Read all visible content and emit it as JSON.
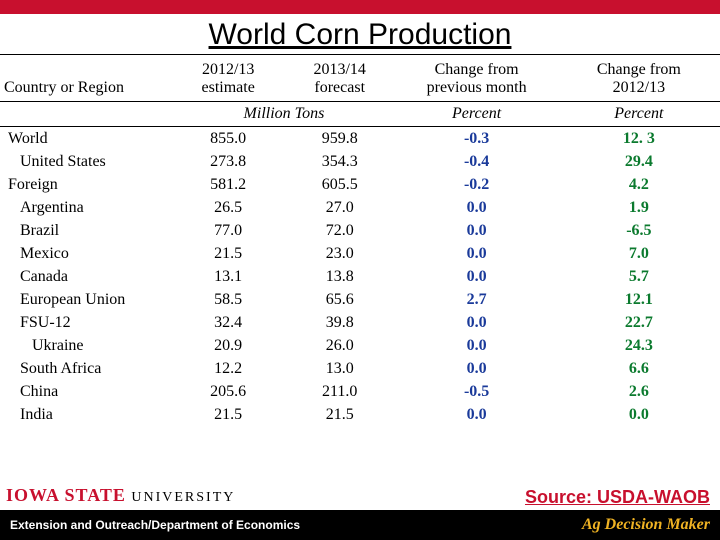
{
  "colors": {
    "brand_red": "#c8102e",
    "blue": "#1a3a9a",
    "green": "#0b7a2e",
    "gold": "#f0b323",
    "black": "#000000",
    "white": "#ffffff"
  },
  "title": "World Corn Production",
  "table": {
    "columns": [
      {
        "key": "region",
        "label": "Country or Region"
      },
      {
        "key": "est",
        "label_line1": "2012/13",
        "label_line2": "estimate"
      },
      {
        "key": "fore",
        "label_line1": "2013/14",
        "label_line2": "forecast"
      },
      {
        "key": "chg1",
        "label_line1": "Change from",
        "label_line2": "previous month"
      },
      {
        "key": "chg2",
        "label_line1": "Change from",
        "label_line2": "2012/13"
      }
    ],
    "units": {
      "mt": "Million Tons",
      "p1": "Percent",
      "p2": "Percent"
    },
    "rows": [
      {
        "region": "World",
        "indent": 0,
        "est": "855.0",
        "fore": "959.8",
        "chg1": "-0.3",
        "chg2": "12. 3"
      },
      {
        "region": "United States",
        "indent": 1,
        "est": "273.8",
        "fore": "354.3",
        "chg1": "-0.4",
        "chg2": "29.4"
      },
      {
        "region": "Foreign",
        "indent": 0,
        "est": "581.2",
        "fore": "605.5",
        "chg1": "-0.2",
        "chg2": "4.2"
      },
      {
        "region": "Argentina",
        "indent": 1,
        "est": "26.5",
        "fore": "27.0",
        "chg1": "0.0",
        "chg2": "1.9"
      },
      {
        "region": "Brazil",
        "indent": 1,
        "est": "77.0",
        "fore": "72.0",
        "chg1": "0.0",
        "chg2": "-6.5"
      },
      {
        "region": "Mexico",
        "indent": 1,
        "est": "21.5",
        "fore": "23.0",
        "chg1": "0.0",
        "chg2": "7.0"
      },
      {
        "region": "Canada",
        "indent": 1,
        "est": "13.1",
        "fore": "13.8",
        "chg1": "0.0",
        "chg2": "5.7"
      },
      {
        "region": "European Union",
        "indent": 1,
        "est": "58.5",
        "fore": "65.6",
        "chg1": "2.7",
        "chg2": "12.1"
      },
      {
        "region": "FSU-12",
        "indent": 1,
        "est": "32.4",
        "fore": "39.8",
        "chg1": "0.0",
        "chg2": "22.7"
      },
      {
        "region": "Ukraine",
        "indent": 2,
        "est": "20.9",
        "fore": "26.0",
        "chg1": "0.0",
        "chg2": "24.3"
      },
      {
        "region": "South Africa",
        "indent": 1,
        "est": "12.2",
        "fore": "13.0",
        "chg1": "0.0",
        "chg2": "6.6"
      },
      {
        "region": "China",
        "indent": 1,
        "est": "205.6",
        "fore": "211.0",
        "chg1": "-0.5",
        "chg2": "2.6"
      },
      {
        "region": "India",
        "indent": 1,
        "est": "21.5",
        "fore": "21.5",
        "chg1": "0.0",
        "chg2": "0.0"
      }
    ]
  },
  "source": "Source: USDA-WAOB",
  "logo": {
    "line1_a": "IOWA ",
    "line1_b": "STATE ",
    "line1_c": "UNIVERSITY"
  },
  "footer": {
    "left": "Extension and Outreach/Department of Economics",
    "right": "Ag Decision Maker"
  }
}
